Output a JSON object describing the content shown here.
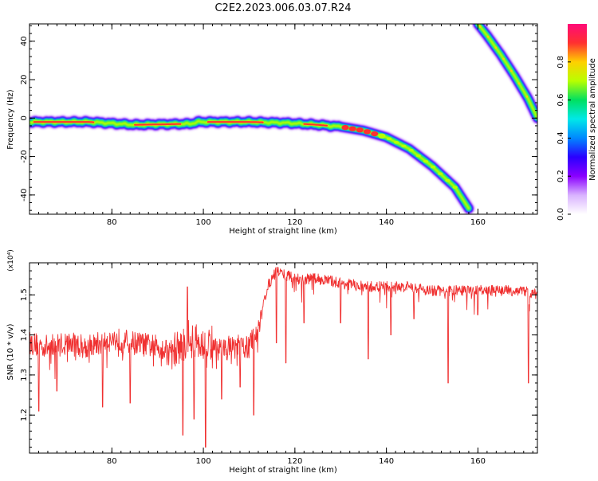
{
  "title": "C2E2.2023.006.03.07.R24",
  "chart_data": [
    {
      "type": "heatmap",
      "xlabel": "Height of straight line (km)",
      "ylabel": "Frequency (Hz)",
      "xlim": [
        62,
        173
      ],
      "ylim": [
        -50,
        49
      ],
      "xticks": [
        80,
        100,
        120,
        140,
        160
      ],
      "yticks": [
        -40,
        -20,
        0,
        20,
        40
      ],
      "colorbar": {
        "label": "Normalized spectral amplitude",
        "range": [
          0.0,
          1.0
        ],
        "ticks": [
          "0.0",
          "0.2",
          "0.4",
          "0.6",
          "0.8"
        ],
        "colormap": [
          "#ffffff",
          "#d9b3ff",
          "#8a00ff",
          "#2a00ff",
          "#0088ff",
          "#00e8e8",
          "#00e060",
          "#b8ff00",
          "#ffd000",
          "#ff3030",
          "#ff0a78"
        ]
      },
      "ridges": [
        {
          "x": [
            62,
            75,
            85,
            97,
            99,
            110,
            118,
            125,
            130,
            135,
            140,
            145,
            150,
            155,
            158
          ],
          "y": [
            -2,
            -2,
            -3.5,
            -3,
            -2,
            -2,
            -2.5,
            -3.5,
            -4.5,
            -6.5,
            -10,
            -16,
            -25,
            -36,
            -47
          ]
        },
        {
          "x": [
            160,
            162,
            165,
            168,
            171,
            173
          ],
          "y": [
            49,
            43,
            33,
            22,
            10,
            0
          ]
        }
      ]
    },
    {
      "type": "line",
      "xlabel": "Height of straight line (km)",
      "ylabel": "SNR (10 * v/v)",
      "y_multiplier": "(x10⁴)",
      "xlim": [
        62,
        173
      ],
      "ylim": [
        1.105,
        1.58
      ],
      "xticks": [
        80,
        100,
        120,
        140,
        160
      ],
      "yticks": [
        1.2,
        1.3,
        1.4,
        1.5
      ],
      "color": "#f03030",
      "series": [
        {
          "x": [
            62,
            66,
            70,
            75,
            80,
            85,
            90,
            94,
            97,
            100,
            103,
            106,
            110,
            112,
            114,
            116,
            118,
            120,
            125,
            130,
            135,
            140,
            145,
            150,
            155,
            160,
            165,
            170,
            173
          ],
          "y": [
            1.38,
            1.37,
            1.38,
            1.37,
            1.39,
            1.38,
            1.37,
            1.36,
            1.39,
            1.37,
            1.36,
            1.37,
            1.37,
            1.42,
            1.52,
            1.56,
            1.55,
            1.54,
            1.54,
            1.53,
            1.52,
            1.52,
            1.52,
            1.51,
            1.51,
            1.51,
            1.51,
            1.51,
            1.5
          ]
        }
      ],
      "dips": [
        {
          "x": 64,
          "y": 1.21
        },
        {
          "x": 68,
          "y": 1.26
        },
        {
          "x": 78,
          "y": 1.22
        },
        {
          "x": 84,
          "y": 1.23
        },
        {
          "x": 95.5,
          "y": 1.15
        },
        {
          "x": 96.5,
          "y": 1.52
        },
        {
          "x": 98,
          "y": 1.19
        },
        {
          "x": 100.5,
          "y": 1.12
        },
        {
          "x": 104,
          "y": 1.24
        },
        {
          "x": 108,
          "y": 1.27
        },
        {
          "x": 111,
          "y": 1.2
        },
        {
          "x": 116,
          "y": 1.38
        },
        {
          "x": 118,
          "y": 1.33
        },
        {
          "x": 122,
          "y": 1.43
        },
        {
          "x": 130,
          "y": 1.43
        },
        {
          "x": 136,
          "y": 1.34
        },
        {
          "x": 141,
          "y": 1.4
        },
        {
          "x": 146,
          "y": 1.44
        },
        {
          "x": 153.5,
          "y": 1.28
        },
        {
          "x": 160,
          "y": 1.45
        },
        {
          "x": 171,
          "y": 1.28
        }
      ]
    }
  ]
}
